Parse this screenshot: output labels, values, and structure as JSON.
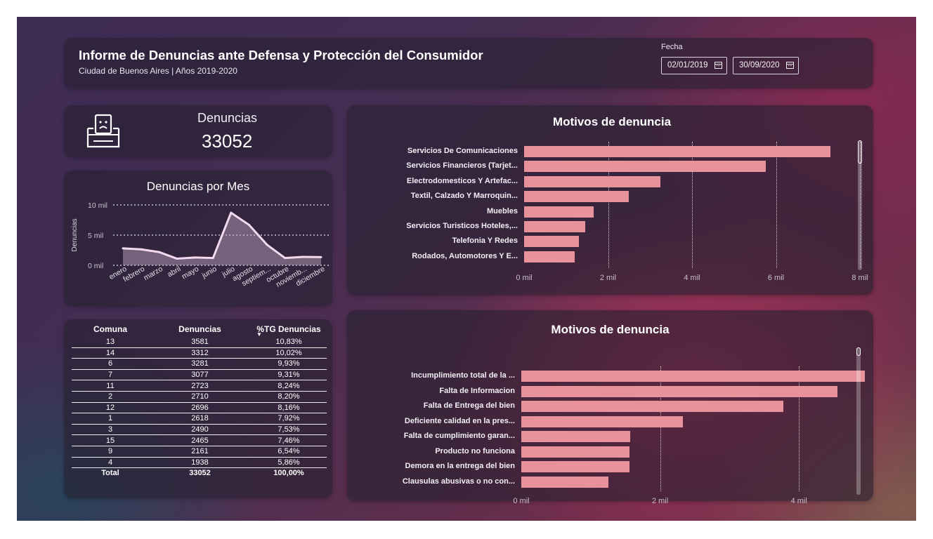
{
  "header": {
    "title": "Informe de Denuncias ante Defensa y Protección del Consumidor",
    "subtitle": "Ciudad de Buenos Aires | Años 2019-2020",
    "date_filter_label": "Fecha",
    "date_start": "02/01/2019",
    "date_end": "30/09/2020"
  },
  "kpi": {
    "label": "Denuncias",
    "value": "33052",
    "icon": "ballot-box-sad-icon"
  },
  "monthly": {
    "title": "Denuncias por Mes",
    "ylabel": "Denuncias",
    "y_ticks": [
      "10 mil",
      "5 mil",
      "0 mil"
    ],
    "months": [
      "enero",
      "febrero",
      "marzo",
      "abril",
      "mayo",
      "junio",
      "julio",
      "agosto",
      "septiem...",
      "octubre",
      "noviemb...",
      "diciembre"
    ],
    "values": [
      2800,
      2650,
      2200,
      1100,
      1300,
      1200,
      8700,
      6700,
      3400,
      1200,
      1400,
      1350
    ],
    "ymax": 10000
  },
  "table": {
    "headers": [
      "Comuna",
      "Denuncias",
      "%TG Denuncias"
    ],
    "sort_indicator": "▼",
    "rows": [
      [
        "13",
        "3581",
        "10,83%"
      ],
      [
        "14",
        "3312",
        "10,02%"
      ],
      [
        "6",
        "3281",
        "9,93%"
      ],
      [
        "7",
        "3077",
        "9,31%"
      ],
      [
        "11",
        "2723",
        "8,24%"
      ],
      [
        "2",
        "2710",
        "8,20%"
      ],
      [
        "12",
        "2696",
        "8,16%"
      ],
      [
        "1",
        "2618",
        "7,92%"
      ],
      [
        "3",
        "2490",
        "7,53%"
      ],
      [
        "15",
        "2465",
        "7,46%"
      ],
      [
        "9",
        "2161",
        "6,54%"
      ],
      [
        "4",
        "1938",
        "5,86%"
      ]
    ],
    "total": [
      "Total",
      "33052",
      "100,00%"
    ]
  },
  "chart_data": [
    {
      "type": "bar",
      "orientation": "horizontal",
      "title": "Motivos de denuncia",
      "categories": [
        "Servicios De Comunicaciones",
        "Servicios Financieros (Tarjet...",
        "Electrodomesticos Y Artefac...",
        "Textil, Calzado Y Marroquin...",
        "Muebles",
        "Servicios Turisticos Hoteles,...",
        "Telefonia Y Redes",
        "Rodados, Automotores Y E..."
      ],
      "values": [
        7300,
        5750,
        3250,
        2500,
        1650,
        1450,
        1300,
        1200
      ],
      "x_ticks": [
        "0 mil",
        "2 mil",
        "4 mil",
        "6 mil",
        "8 mil"
      ],
      "xlim": [
        0,
        8000
      ],
      "bar_color": "#e8939b"
    },
    {
      "type": "bar",
      "orientation": "horizontal",
      "title": "Motivos de denuncia",
      "categories": [
        "Incumplimiento total de la ...",
        "Falta de Informacion",
        "Falta de Entrega del bien",
        "Deficiente calidad en la pres...",
        "Falta de cumplimiento garan...",
        "Producto no funciona",
        "Demora en la entrega del bien",
        "Clausulas abusivas o no con..."
      ],
      "values": [
        4950,
        4550,
        3780,
        2330,
        1570,
        1560,
        1560,
        1250
      ],
      "x_ticks": [
        "0 mil",
        "2 mil",
        "4 mil"
      ],
      "xlim": [
        0,
        5000
      ],
      "bar_color": "#e8939b"
    }
  ]
}
